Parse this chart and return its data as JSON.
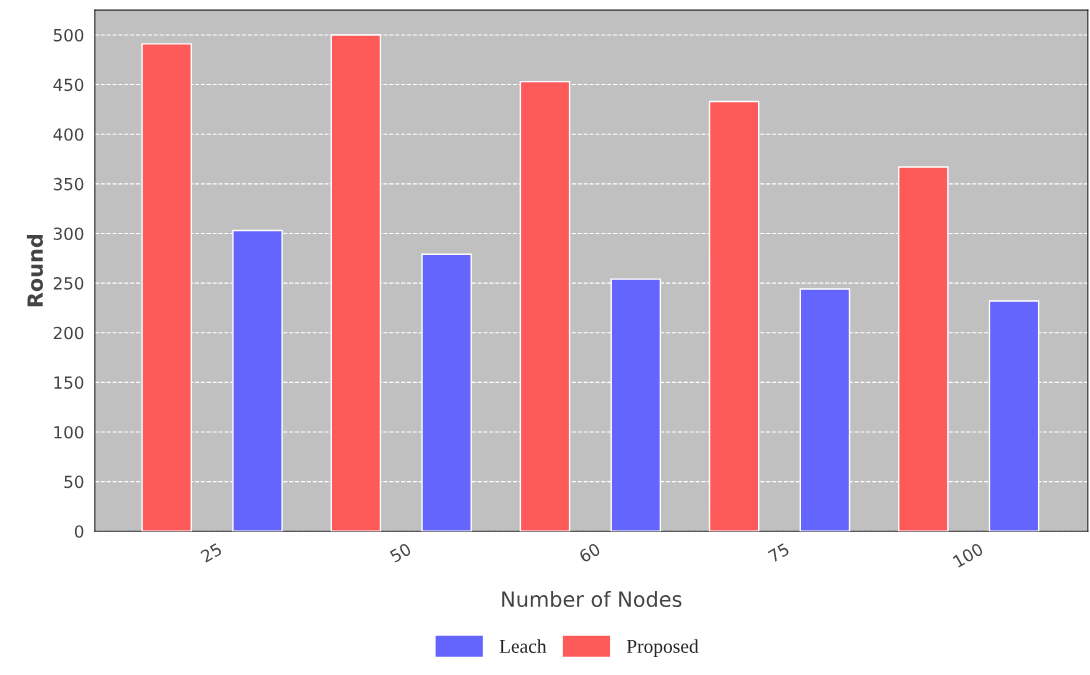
{
  "chart_data": {
    "type": "bar",
    "xlabel": "Number of Nodes",
    "ylabel": "Round",
    "categories": [
      "25",
      "50",
      "60",
      "75",
      "100"
    ],
    "series": [
      {
        "name": "Proposed",
        "color": "#ff5a5a",
        "values": [
          491,
          500,
          453,
          433,
          367
        ]
      },
      {
        "name": "Leach",
        "color": "#6464ff",
        "values": [
          303,
          279,
          254,
          244,
          232
        ]
      }
    ],
    "ylim": [
      0,
      525
    ],
    "yticks": [
      0,
      50,
      100,
      150,
      200,
      250,
      300,
      350,
      400,
      450,
      500
    ],
    "grid": "y",
    "legend": "bottom"
  }
}
